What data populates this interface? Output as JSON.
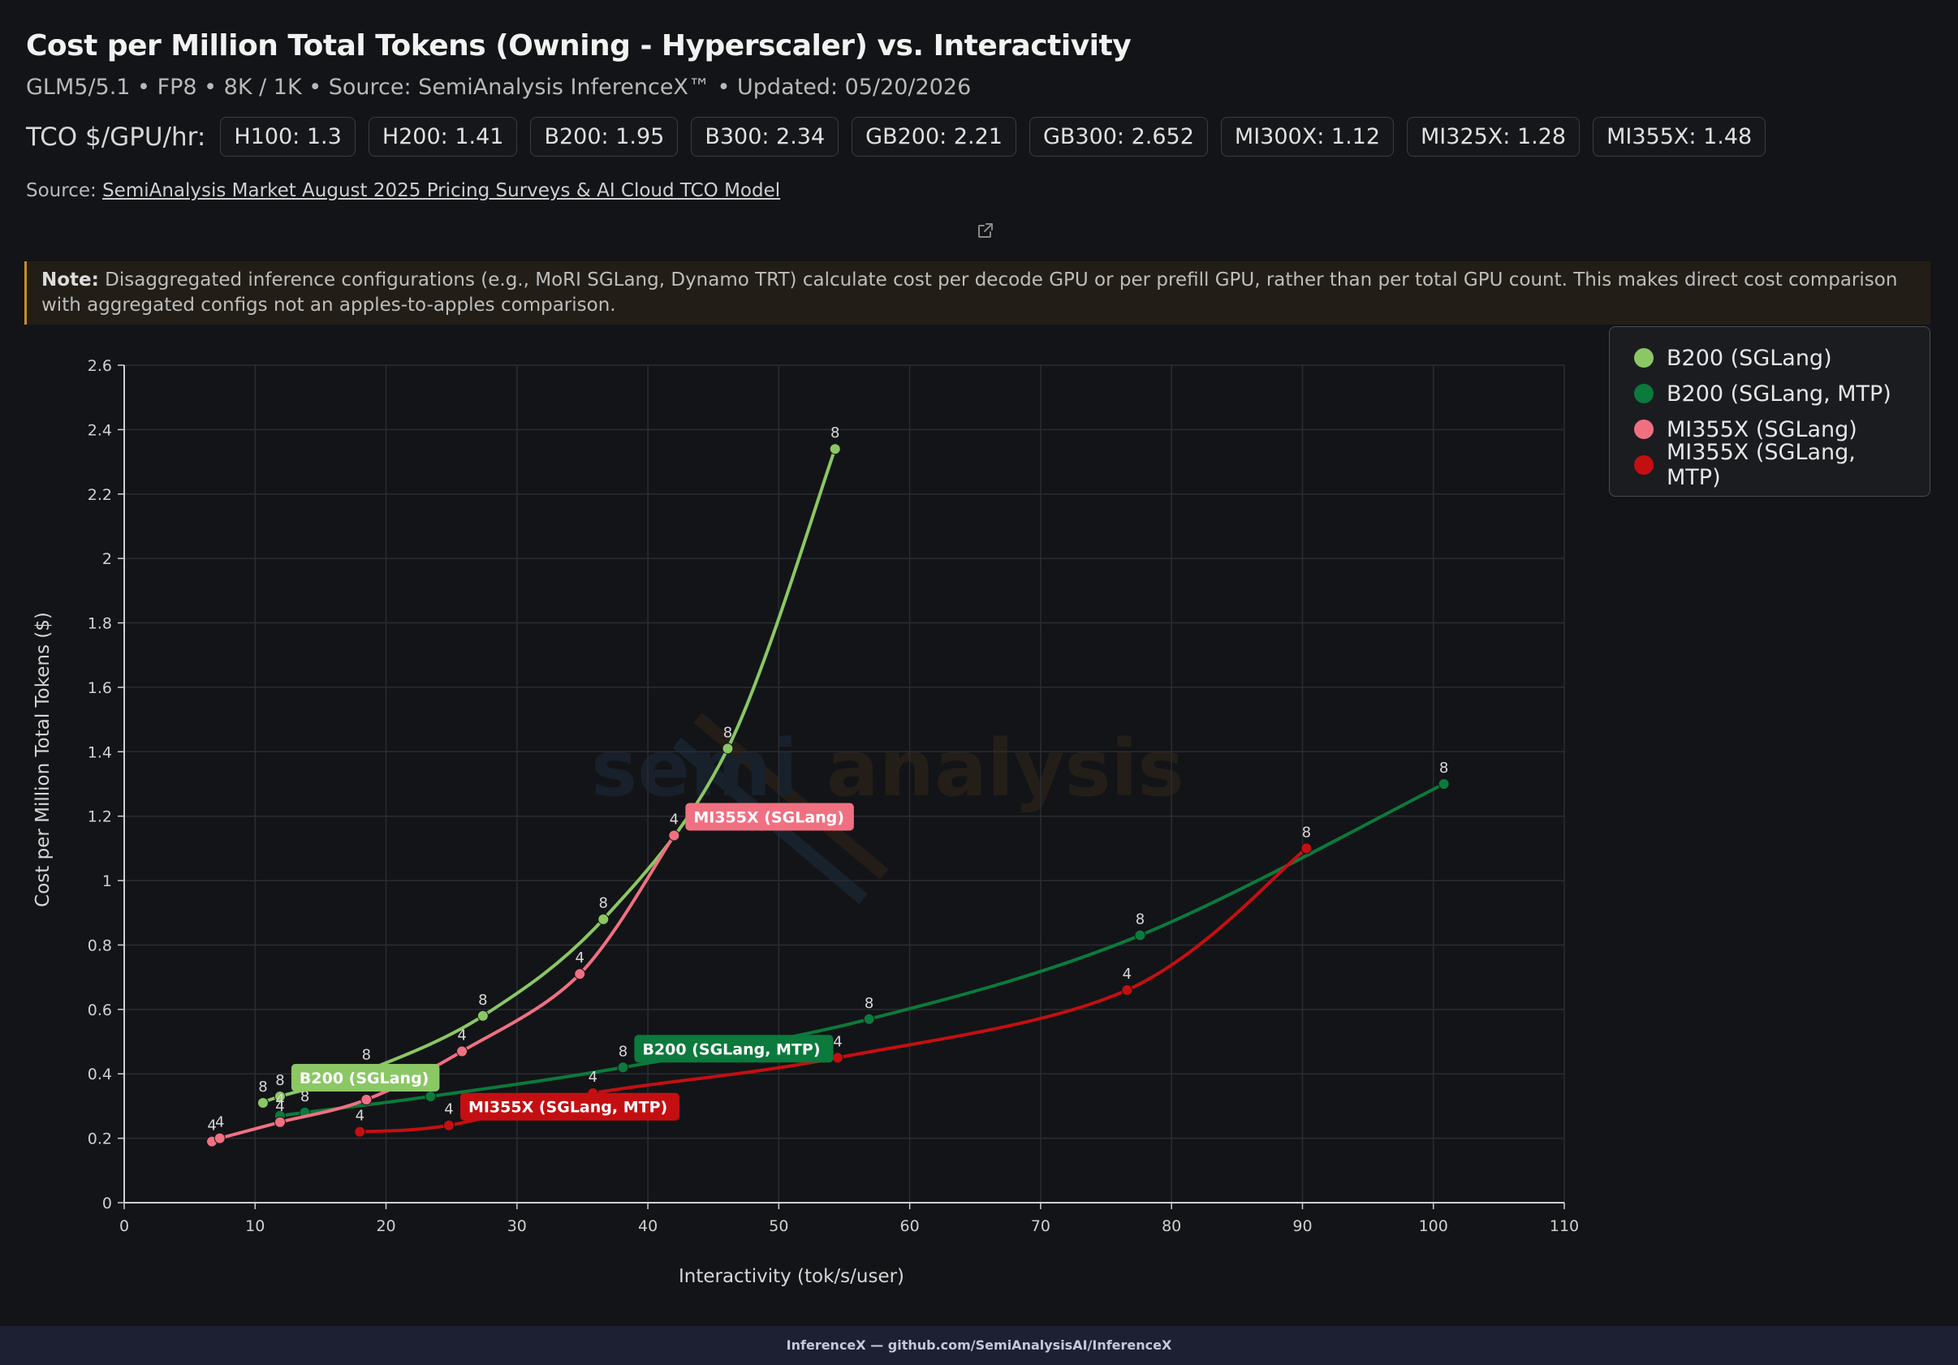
{
  "header": {
    "title": "Cost per Million Total Tokens (Owning - Hyperscaler) vs. Interactivity",
    "subtitle": "GLM5/5.1 • FP8 • 8K / 1K • Source: SemiAnalysis InferenceX™ • Updated: 05/20/2026",
    "tco_label": "TCO $/GPU/hr:",
    "tco": [
      "H100: 1.3",
      "H200: 1.41",
      "B200: 1.95",
      "B300: 2.34",
      "GB200: 2.21",
      "GB300: 2.652",
      "MI300X: 1.12",
      "MI325X: 1.28",
      "MI355X: 1.48"
    ],
    "source_prefix": "Source:",
    "source_link": "SemiAnalysis Market August 2025 Pricing Surveys & AI Cloud TCO Model"
  },
  "note": {
    "label": "Note:",
    "text": "Disaggregated inference configurations (e.g., MoRI SGLang, Dynamo TRT) calculate cost per decode GPU or per prefill GPU, rather than per total GPU count. This makes direct cost comparison with aggregated configs not an apples-to-apples comparison."
  },
  "icons": {
    "external_link": "external-link-icon"
  },
  "watermark": {
    "left": "semi",
    "right": "analysis"
  },
  "footer": {
    "text": "InferenceX — github.com/SemiAnalysisAI/InferenceX"
  },
  "chart_data": {
    "type": "line",
    "xlabel": "Interactivity (tok/s/user)",
    "ylabel": "Cost per Million Total Tokens ($)",
    "xlim": [
      0,
      110
    ],
    "ylim": [
      0,
      2.6
    ],
    "x_ticks": [
      0,
      10,
      20,
      30,
      40,
      50,
      60,
      70,
      80,
      90,
      100,
      110
    ],
    "y_ticks": [
      0,
      0.2,
      0.4,
      0.6,
      0.8,
      1,
      1.2,
      1.4,
      1.6,
      1.8,
      2,
      2.2,
      2.4,
      2.6
    ],
    "grid": true,
    "legend_position": "top-right",
    "series": [
      {
        "name": "B200 (SGLang)",
        "color": "#8bc765",
        "points": [
          {
            "x": 10.6,
            "y": 0.31,
            "label": "8"
          },
          {
            "x": 11.9,
            "y": 0.33,
            "label": "8"
          },
          {
            "x": 18.5,
            "y": 0.41,
            "label": "8"
          },
          {
            "x": 27.4,
            "y": 0.58,
            "label": "8"
          },
          {
            "x": 36.6,
            "y": 0.88,
            "label": "8"
          },
          {
            "x": 46.1,
            "y": 1.41,
            "label": "8"
          },
          {
            "x": 54.3,
            "y": 2.34,
            "label": "8"
          }
        ],
        "tag": {
          "text": "B200 (SGLang)",
          "at": 1
        }
      },
      {
        "name": "B200 (SGLang, MTP)",
        "color": "#0b7a3c",
        "points": [
          {
            "x": 11.9,
            "y": 0.27,
            "label": "4"
          },
          {
            "x": 13.8,
            "y": 0.28,
            "label": "8"
          },
          {
            "x": 23.4,
            "y": 0.33,
            "label": "8"
          },
          {
            "x": 38.1,
            "y": 0.42,
            "label": "8"
          },
          {
            "x": 56.9,
            "y": 0.57,
            "label": "8"
          },
          {
            "x": 77.6,
            "y": 0.83,
            "label": "8"
          },
          {
            "x": 100.8,
            "y": 1.3,
            "label": "8"
          }
        ],
        "tag": {
          "text": "B200 (SGLang, MTP)",
          "at": 3
        }
      },
      {
        "name": "MI355X (SGLang)",
        "color": "#f07082",
        "points": [
          {
            "x": 6.7,
            "y": 0.19,
            "label": "4"
          },
          {
            "x": 7.3,
            "y": 0.2,
            "label": "4"
          },
          {
            "x": 11.9,
            "y": 0.25,
            "label": "4"
          },
          {
            "x": 18.5,
            "y": 0.32,
            "label": "4"
          },
          {
            "x": 25.8,
            "y": 0.47,
            "label": "4"
          },
          {
            "x": 34.8,
            "y": 0.71,
            "label": "4"
          },
          {
            "x": 42.0,
            "y": 1.14,
            "label": "4"
          }
        ],
        "tag": {
          "text": "MI355X (SGLang)",
          "at": 6
        }
      },
      {
        "name": "MI355X (SGLang, MTP)",
        "color": "#c40f12",
        "points": [
          {
            "x": 18.0,
            "y": 0.22,
            "label": "4"
          },
          {
            "x": 24.8,
            "y": 0.24,
            "label": "4"
          },
          {
            "x": 35.8,
            "y": 0.34,
            "label": "4"
          },
          {
            "x": 54.5,
            "y": 0.45,
            "label": "4"
          },
          {
            "x": 76.6,
            "y": 0.66,
            "label": "4"
          },
          {
            "x": 90.3,
            "y": 1.1,
            "label": "8"
          }
        ],
        "tag": {
          "text": "MI355X (SGLang, MTP)",
          "at": 1
        }
      }
    ]
  }
}
